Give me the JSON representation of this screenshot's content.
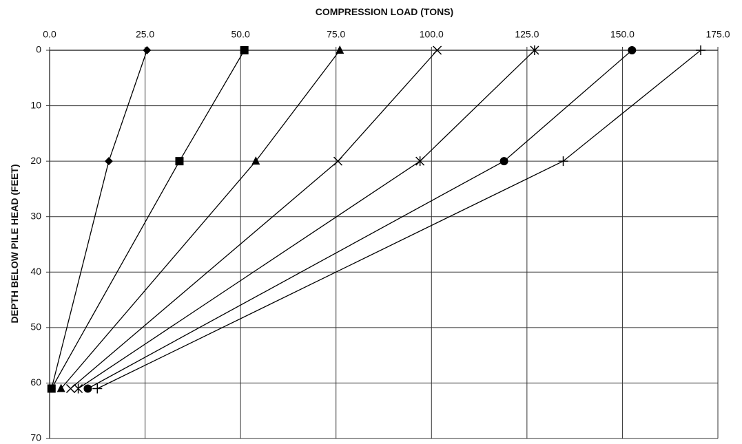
{
  "chart_data": {
    "type": "line",
    "title": "",
    "xlabel": "COMPRESSION LOAD (TONS)",
    "ylabel": "DEPTH BELOW PILE HEAD (FEET)",
    "x_axis_position": "top",
    "y_axis_inverted": true,
    "xlim": [
      0,
      175
    ],
    "ylim": [
      0,
      70
    ],
    "x_ticks": [
      "0.0",
      "25.0",
      "50.0",
      "75.0",
      "100.0",
      "125.0",
      "150.0",
      "175.0"
    ],
    "y_ticks": [
      "0",
      "10",
      "20",
      "30",
      "40",
      "50",
      "60",
      "70"
    ],
    "grid": true,
    "legend": "none",
    "series": [
      {
        "marker": "diamond",
        "color": "#000000",
        "points": [
          [
            25.5,
            0
          ],
          [
            15.5,
            20
          ],
          [
            0.5,
            61
          ]
        ]
      },
      {
        "marker": "square",
        "color": "#000000",
        "points": [
          [
            51.0,
            0
          ],
          [
            34.0,
            20
          ],
          [
            0.5,
            61
          ]
        ]
      },
      {
        "marker": "triangle",
        "color": "#000000",
        "points": [
          [
            76.0,
            0
          ],
          [
            54.0,
            20
          ],
          [
            3.0,
            61
          ]
        ]
      },
      {
        "marker": "x",
        "color": "#000000",
        "points": [
          [
            101.5,
            0
          ],
          [
            75.5,
            20
          ],
          [
            5.5,
            61
          ]
        ]
      },
      {
        "marker": "asterisk",
        "color": "#000000",
        "points": [
          [
            127.0,
            0
          ],
          [
            97.0,
            20
          ],
          [
            7.5,
            61
          ]
        ]
      },
      {
        "marker": "circle",
        "color": "#000000",
        "points": [
          [
            152.5,
            0
          ],
          [
            119.0,
            20
          ],
          [
            10.0,
            61
          ]
        ]
      },
      {
        "marker": "plus",
        "color": "#000000",
        "points": [
          [
            170.5,
            0
          ],
          [
            134.5,
            20
          ],
          [
            12.5,
            61
          ]
        ]
      }
    ]
  }
}
